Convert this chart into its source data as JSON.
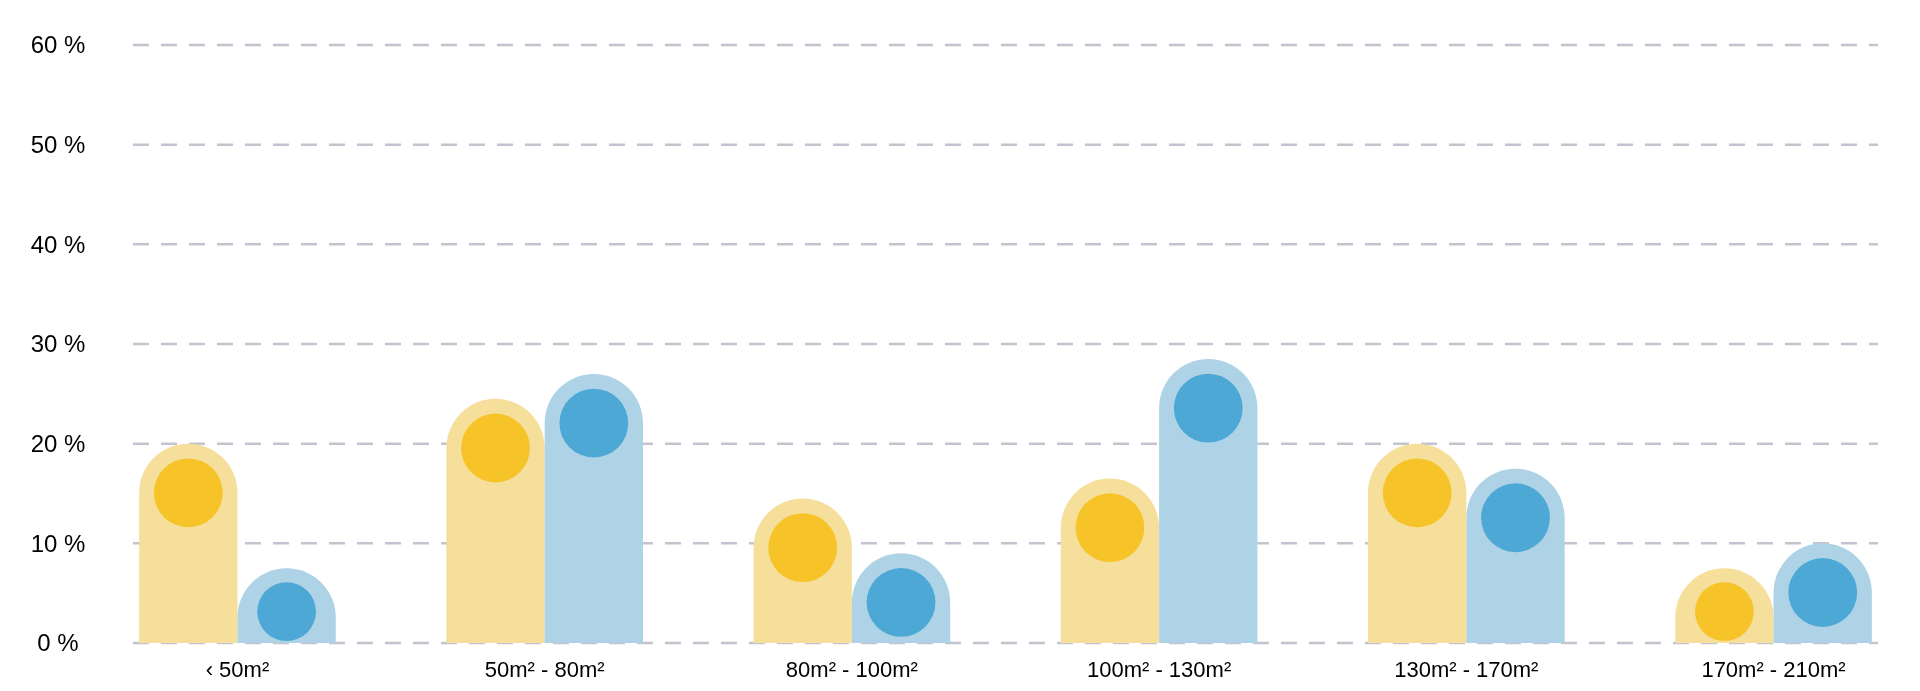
{
  "chart_data": {
    "type": "bar",
    "categories": [
      "‹ 50m²",
      "50m² - 80m²",
      "80m² - 100m²",
      "100m² - 130m²",
      "130m² - 170m²",
      "170m² - 210m²"
    ],
    "series": [
      {
        "color": "#f5df9a",
        "values": [
          20,
          24.5,
          14.5,
          16.5,
          20,
          7.5
        ]
      },
      {
        "color": "#aed3e6",
        "values": [
          7.5,
          27,
          9,
          28.5,
          17.5,
          10
        ]
      }
    ],
    "ylim": [
      0,
      60
    ],
    "yticks": [
      {
        "value": 0,
        "label": "0 %"
      },
      {
        "value": 10,
        "label": "10 %"
      },
      {
        "value": 20,
        "label": "20 %"
      },
      {
        "value": 30,
        "label": "30 %"
      },
      {
        "value": 40,
        "label": "40 %"
      },
      {
        "value": 50,
        "label": "50 %"
      },
      {
        "value": 60,
        "label": "60 %"
      }
    ],
    "grid": "y"
  }
}
